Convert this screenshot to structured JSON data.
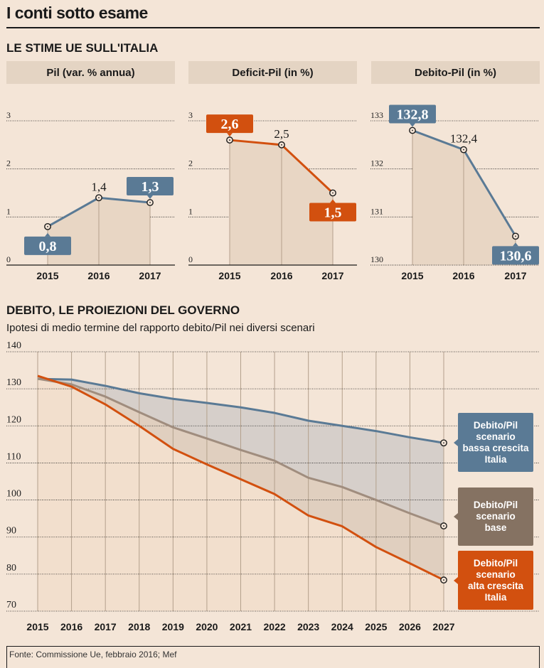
{
  "title": "I conti sotto esame",
  "section1_title": "LE STIME UE SULL'ITALIA",
  "section2_title": "DEBITO, LE PROIEZIONI DEL GOVERNO",
  "section2_subtitle": "Ipotesi di medio termine del rapporto debito/Pil nei diversi scenari",
  "source": "Fonte: Commissione Ue, febbraio 2016; Mef",
  "colors": {
    "background": "#f4e5d7",
    "blue": "#5a7a95",
    "orange": "#d2500f",
    "taupe": "#857262",
    "gray_line": "#a08d7e",
    "panel_header": "#e4d4c3"
  },
  "chart_data": [
    {
      "type": "line",
      "title": "Pil (var. % annua)",
      "categories": [
        "2015",
        "2016",
        "2017"
      ],
      "values": [
        0.8,
        1.4,
        1.3
      ],
      "value_labels": [
        "0,8",
        "1,4",
        "1,3"
      ],
      "highlighted": [
        true,
        false,
        true
      ],
      "ylim": [
        0,
        3
      ],
      "yticks": [
        "0",
        "1",
        "2",
        "3"
      ],
      "color": "#5a7a95",
      "grid": true
    },
    {
      "type": "line",
      "title": "Deficit-Pil (in %)",
      "categories": [
        "2015",
        "2016",
        "2017"
      ],
      "values": [
        2.6,
        2.5,
        1.5
      ],
      "value_labels": [
        "2,6",
        "2,5",
        "1,5"
      ],
      "highlighted": [
        true,
        false,
        true
      ],
      "ylim": [
        0,
        3
      ],
      "yticks": [
        "0",
        "1",
        "2",
        "3"
      ],
      "color": "#d2500f",
      "grid": true
    },
    {
      "type": "line",
      "title": "Debito-Pil (in %)",
      "categories": [
        "2015",
        "2016",
        "2017"
      ],
      "values": [
        132.8,
        132.4,
        130.6
      ],
      "value_labels": [
        "132,8",
        "132,4",
        "130,6"
      ],
      "highlighted": [
        true,
        false,
        true
      ],
      "ylim": [
        130,
        133
      ],
      "yticks": [
        "130",
        "131",
        "132",
        "133"
      ],
      "color": "#5a7a95",
      "grid": true
    },
    {
      "type": "area",
      "title": "DEBITO, LE PROIEZIONI DEL GOVERNO",
      "subtitle": "Ipotesi di medio termine del rapporto debito/Pil nei diversi scenari",
      "x": [
        "2015",
        "2016",
        "2017",
        "2018",
        "2019",
        "2020",
        "2021",
        "2022",
        "2023",
        "2024",
        "2025",
        "2026",
        "2027"
      ],
      "ylim": [
        70,
        140
      ],
      "yticks": [
        "70",
        "80",
        "90",
        "100",
        "110",
        "120",
        "130",
        "140"
      ],
      "grid": true,
      "legend": "right",
      "series": [
        {
          "name": "Debito/Pil scenario bassa crescita Italia",
          "color": "#5a7a95",
          "values": [
            132.7,
            132.5,
            130.8,
            128.8,
            127.3,
            126.2,
            125.0,
            123.5,
            121.4,
            120.0,
            118.6,
            116.9,
            115.4
          ]
        },
        {
          "name": "Debito/Pil scenario base",
          "color": "#a08d7e",
          "values": [
            132.7,
            131.2,
            127.9,
            123.7,
            119.6,
            116.6,
            113.5,
            110.6,
            106.0,
            103.5,
            100.0,
            96.4,
            93.0
          ]
        },
        {
          "name": "Debito/Pil scenario alta crescita Italia",
          "color": "#d2500f",
          "values": [
            133.5,
            130.6,
            125.8,
            120.0,
            113.8,
            109.6,
            105.6,
            101.6,
            95.8,
            92.9,
            87.3,
            82.9,
            78.4
          ]
        }
      ]
    }
  ],
  "legend": [
    {
      "lines": [
        "Debito/Pil",
        "scenario",
        "bassa crescita",
        "Italia"
      ],
      "color": "#5a7a95"
    },
    {
      "lines": [
        "Debito/Pil",
        "scenario",
        "base"
      ],
      "color": "#857262"
    },
    {
      "lines": [
        "Debito/Pil",
        "scenario",
        "alta crescita",
        "Italia"
      ],
      "color": "#d2500f"
    }
  ]
}
